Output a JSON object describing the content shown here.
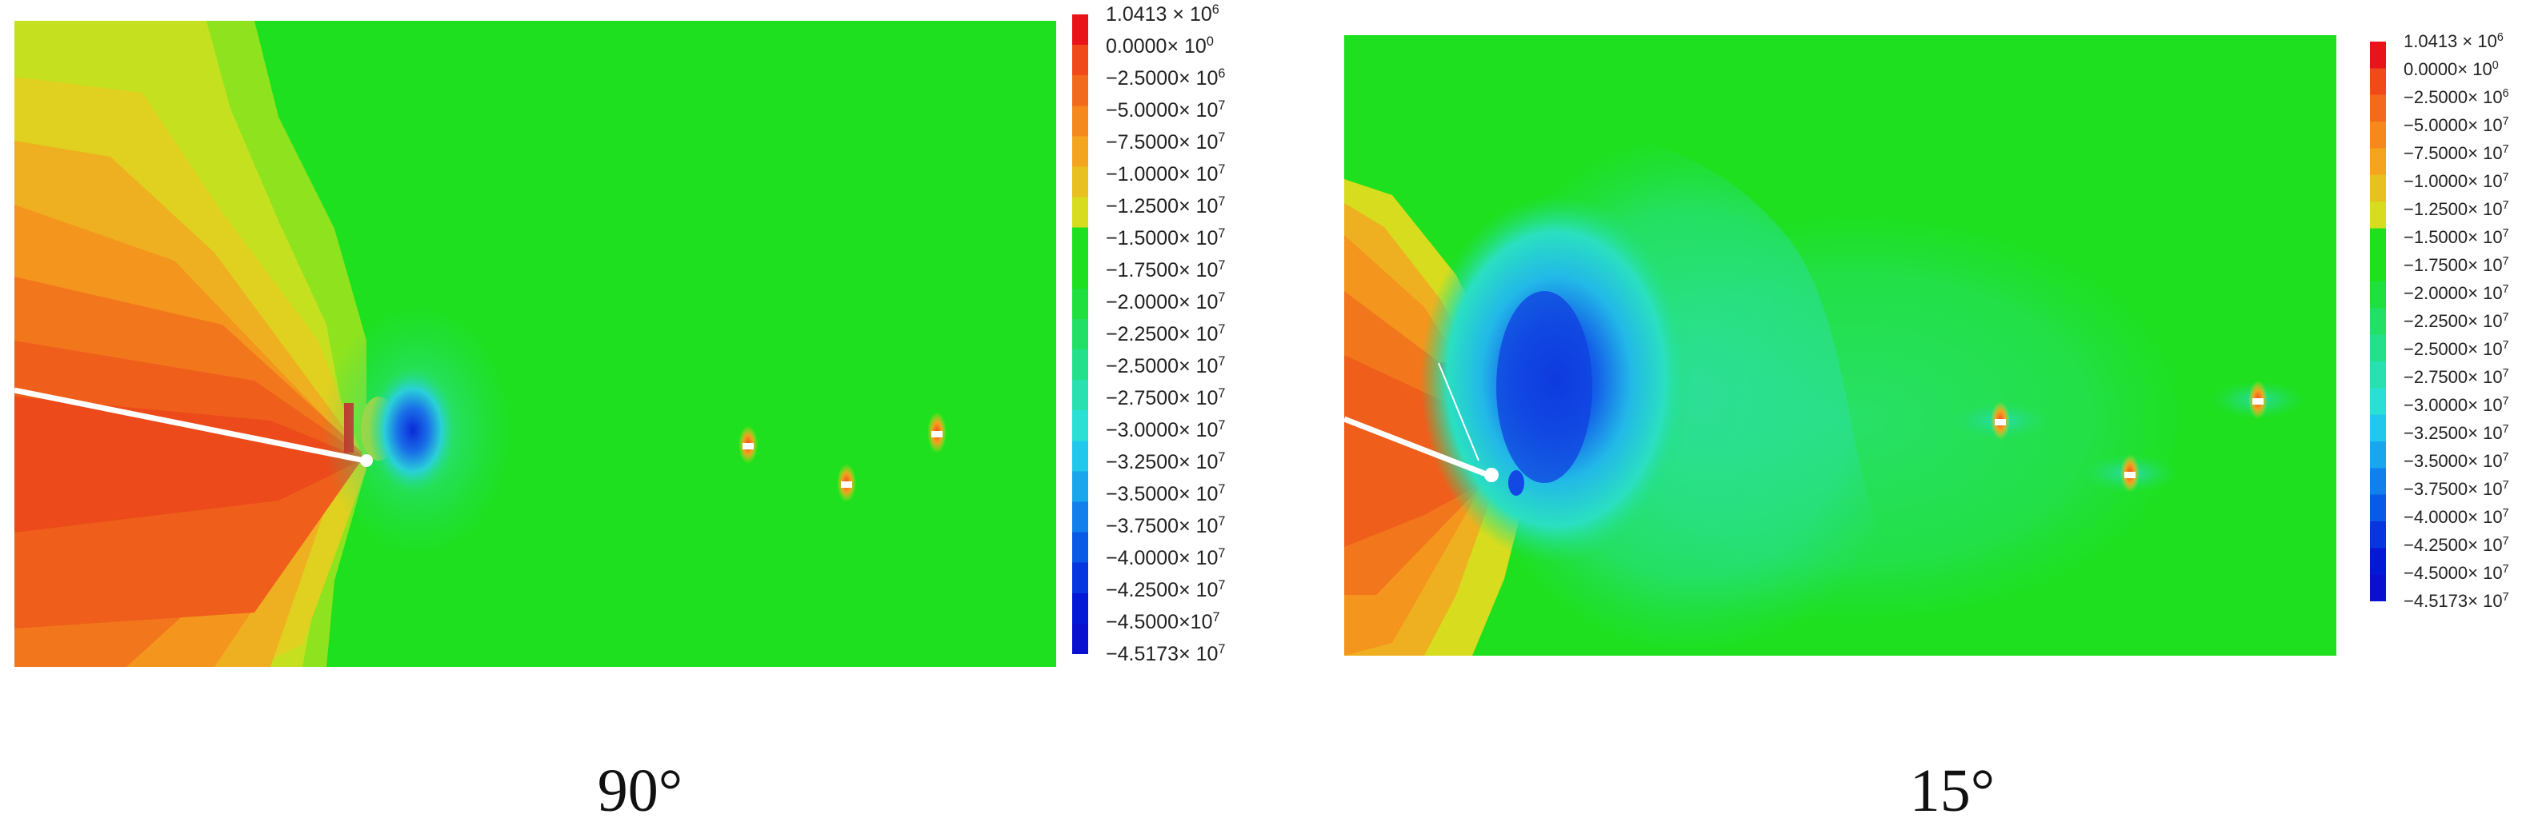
{
  "panels": [
    {
      "caption": "90°",
      "colorbar": {
        "labels": [
          {
            "mant": "1.0413 × 10",
            "exp": "6"
          },
          {
            "mant": "0.0000× 10",
            "exp": "0"
          },
          {
            "mant": "−2.5000× 10",
            "exp": "6"
          },
          {
            "mant": "−5.0000× 10",
            "exp": "7"
          },
          {
            "mant": "−7.5000× 10",
            "exp": "7"
          },
          {
            "mant": "−1.0000× 10",
            "exp": "7"
          },
          {
            "mant": "−1.2500× 10",
            "exp": "7"
          },
          {
            "mant": "−1.5000× 10",
            "exp": "7"
          },
          {
            "mant": "−1.7500× 10",
            "exp": "7"
          },
          {
            "mant": "−2.0000× 10",
            "exp": "7"
          },
          {
            "mant": "−2.2500× 10",
            "exp": "7"
          },
          {
            "mant": "−2.5000× 10",
            "exp": "7"
          },
          {
            "mant": "−2.7500× 10",
            "exp": "7"
          },
          {
            "mant": "−3.0000× 10",
            "exp": "7"
          },
          {
            "mant": "−3.2500× 10",
            "exp": "7"
          },
          {
            "mant": "−3.5000× 10",
            "exp": "7"
          },
          {
            "mant": "−3.7500× 10",
            "exp": "7"
          },
          {
            "mant": "−4.0000× 10",
            "exp": "7"
          },
          {
            "mant": "−4.2500× 10",
            "exp": "7"
          },
          {
            "mant": "−4.5000×10",
            "exp": "7"
          },
          {
            "mant": "−4.5173× 10",
            "exp": "7"
          }
        ],
        "colors": [
          "#e8141a",
          "#f04a1a",
          "#f26a1c",
          "#f5891e",
          "#f4a520",
          "#e8c020",
          "#d7dc1e",
          "#1ee01e",
          "#1ee01e",
          "#20e040",
          "#22e065",
          "#25e08a",
          "#28e0b0",
          "#2ae0d5",
          "#22c8ec",
          "#1aa6ec",
          "#1280ec",
          "#0a5ae8",
          "#0636e0",
          "#0418d8",
          "#0a10d0"
        ]
      }
    },
    {
      "caption": "15°",
      "colorbar": {
        "labels": [
          {
            "mant": "1.0413 × 10",
            "exp": "6"
          },
          {
            "mant": "0.0000× 10",
            "exp": "0"
          },
          {
            "mant": "−2.5000× 10",
            "exp": "6"
          },
          {
            "mant": "−5.0000× 10",
            "exp": "7"
          },
          {
            "mant": "−7.5000× 10",
            "exp": "7"
          },
          {
            "mant": "−1.0000× 10",
            "exp": "7"
          },
          {
            "mant": "−1.2500× 10",
            "exp": "7"
          },
          {
            "mant": "−1.5000× 10",
            "exp": "7"
          },
          {
            "mant": "−1.7500× 10",
            "exp": "7"
          },
          {
            "mant": "−2.0000× 10",
            "exp": "7"
          },
          {
            "mant": "−2.2500× 10",
            "exp": "7"
          },
          {
            "mant": "−2.5000× 10",
            "exp": "7"
          },
          {
            "mant": "−2.7500× 10",
            "exp": "7"
          },
          {
            "mant": "−3.0000× 10",
            "exp": "7"
          },
          {
            "mant": "−3.2500× 10",
            "exp": "7"
          },
          {
            "mant": "−3.5000× 10",
            "exp": "7"
          },
          {
            "mant": "−3.7500× 10",
            "exp": "7"
          },
          {
            "mant": "−4.0000× 10",
            "exp": "7"
          },
          {
            "mant": "−4.2500× 10",
            "exp": "7"
          },
          {
            "mant": "−4.5000× 10",
            "exp": "7"
          },
          {
            "mant": "−4.5173× 10",
            "exp": "7"
          }
        ],
        "colors": [
          "#e8141a",
          "#f04a1a",
          "#f26a1c",
          "#f5891e",
          "#f4a520",
          "#e8c020",
          "#d7dc1e",
          "#1ee01e",
          "#1ee01e",
          "#20e040",
          "#22e065",
          "#25e08a",
          "#28e0b0",
          "#2ae0d5",
          "#22c8ec",
          "#1aa6ec",
          "#1280ec",
          "#0a5ae8",
          "#0636e0",
          "#0418d8",
          "#0a10d0"
        ]
      }
    }
  ]
}
